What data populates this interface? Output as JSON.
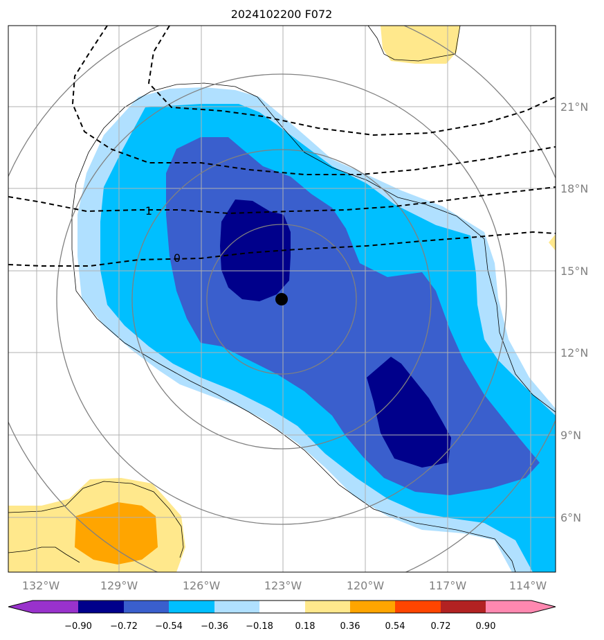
{
  "chart_data": {
    "type": "contour-map",
    "title": "2024102200 F072",
    "x_ticks": [
      "132°W",
      "129°W",
      "126°W",
      "123°W",
      "120°W",
      "117°W",
      "114°W"
    ],
    "y_ticks": [
      "6°N",
      "9°N",
      "12°N",
      "15°N",
      "18°N",
      "21°N"
    ],
    "lon_range": [
      -133.0,
      -113.1
    ],
    "lat_range": [
      3.9,
      23.7
    ],
    "grid": true,
    "storm_center": {
      "lon": -123.0,
      "lat": 14.0
    },
    "range_rings_km": [
      300,
      600,
      900,
      1200
    ],
    "contour_labels": [
      "1",
      "0"
    ],
    "colorbar": {
      "levels": [
        "−0.90",
        "−0.72",
        "−0.54",
        "−0.36",
        "−0.18",
        "0.18",
        "0.36",
        "0.54",
        "0.72",
        "0.90"
      ],
      "colors": [
        "#9932cc",
        "#00008b",
        "#3a5fcd",
        "#00bfff",
        "#b0e0ff",
        "#ffffff",
        "#ffe88c",
        "#ffa500",
        "#ff4500",
        "#b22222",
        "#ff88b0"
      ],
      "extend": "both"
    }
  }
}
